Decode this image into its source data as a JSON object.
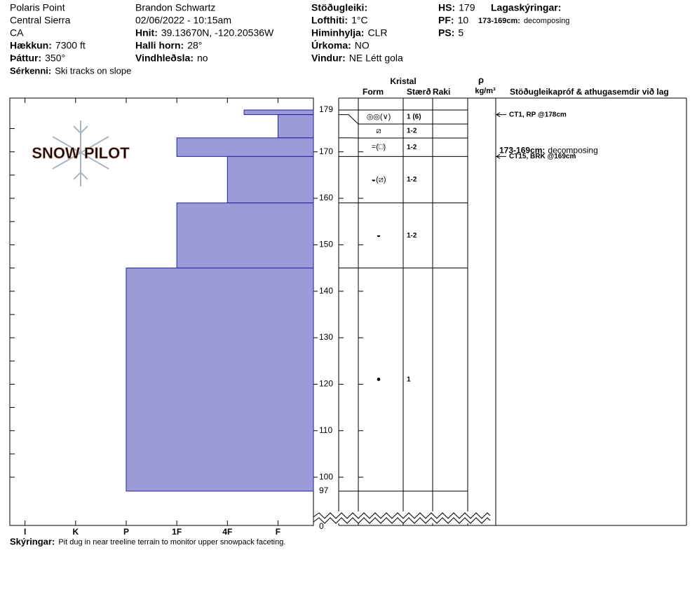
{
  "header": {
    "columns": [
      [
        {
          "value": "Polaris Point"
        },
        {
          "value": "Central Sierra"
        },
        {
          "value": "CA"
        },
        {
          "label": "Hækkun:",
          "value": "7300 ft"
        },
        {
          "label": "Þáttur:",
          "value": "350°"
        }
      ],
      [
        {
          "value": "Brandon Schwartz"
        },
        {
          "value": "02/06/2022 - 10:15am"
        },
        {
          "label": "Hnit:",
          "value": "39.13670N, -120.20536W"
        },
        {
          "label": "Halli horn:",
          "value": "28°"
        },
        {
          "label": "Vindhleðsla:",
          "value": "no"
        }
      ],
      [
        {
          "label": "Stöðugleiki:"
        },
        {
          "label": "Lofthiti:",
          "value": "1°C"
        },
        {
          "label": "Himinhylja:",
          "value": "CLR"
        },
        {
          "label": "Úrkoma:",
          "value": "NO"
        },
        {
          "label": "Vindur:",
          "value": "NE Létt gola"
        }
      ],
      [
        {
          "label": "HS:",
          "value": "179"
        },
        {
          "label": "PF:",
          "value": "10"
        },
        {
          "label": "PS:",
          "value": "5"
        }
      ]
    ],
    "remarks": {
      "label": "Sérkenni:",
      "value": "Ski tracks on slope"
    },
    "layer_notes": {
      "title": "Lagaskýringar:",
      "label": "173-169cm:",
      "value": "decomposing"
    }
  },
  "chart_data": {
    "type": "snow-profile",
    "logo": "SNOW PILOT",
    "ylim": [
      97,
      179
    ],
    "yticks": [
      100,
      110,
      120,
      130,
      140,
      150,
      160,
      170
    ],
    "minor_yticks": [
      100,
      105,
      110,
      115,
      120,
      125,
      130,
      135,
      140,
      145,
      150,
      155,
      160,
      165,
      170,
      175
    ],
    "top_label": 179,
    "bottom_label": 97,
    "ground_label": 0,
    "xlim": [
      6.3,
      0.3
    ],
    "xticks": [
      {
        "value": 6,
        "label": "I"
      },
      {
        "value": 5,
        "label": "K"
      },
      {
        "value": 4,
        "label": "P"
      },
      {
        "value": 3,
        "label": "1F"
      },
      {
        "value": 2,
        "label": "4F"
      },
      {
        "value": 1,
        "label": "F"
      }
    ],
    "color": "#9b9bd8",
    "edge": "#2020a0",
    "columns": {
      "crystal": "Kristal",
      "form": "Form",
      "size": "Stærð",
      "moisture": "Raki",
      "density_symbol": "ρ",
      "density_unit": "kg/m³",
      "tests": "Stöðugleikapróf & athugasemdir við lag"
    },
    "layers": [
      {
        "top": 179,
        "bottom": 178,
        "hardness": 1.67,
        "form": "◎◎(∨)",
        "size": "1 (6)"
      },
      {
        "top": 178,
        "bottom": 173,
        "hardness": 1,
        "form": "⧄",
        "size": "1-2"
      },
      {
        "top": 173,
        "bottom": 169,
        "hardness": 3,
        "form": "=(□)",
        "size": "1-2"
      },
      {
        "top": 169,
        "bottom": 159,
        "hardness": 2,
        "form": "◒(⧄)",
        "size": "1-2"
      },
      {
        "top": 159,
        "bottom": 145,
        "hardness": 3,
        "form": "◒",
        "size": "1-2"
      },
      {
        "top": 145,
        "bottom": 97,
        "hardness": 4,
        "form": "●",
        "size": "1"
      }
    ],
    "tests": [
      {
        "depth": 178,
        "label": "CT1, RP @178cm"
      },
      {
        "depth": 169,
        "label": "CT15, BRK @169cm"
      }
    ],
    "comments": [
      {
        "depth": 169,
        "label": "173-169cm:",
        "text": "decomposing"
      }
    ]
  },
  "footer": {
    "label": "Skýringar:",
    "value": "Pit dug in near treeline terrain to monitor upper snowpack faceting."
  }
}
